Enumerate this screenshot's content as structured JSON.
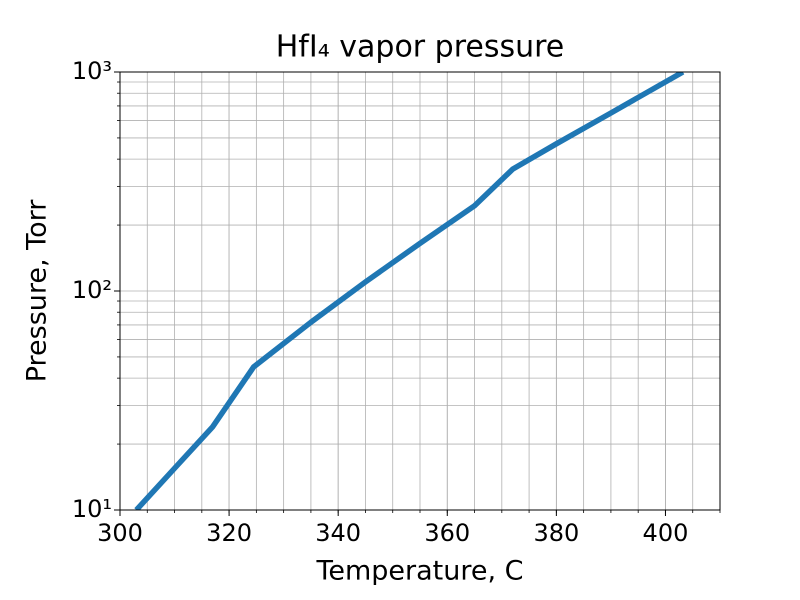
{
  "chart_data": {
    "type": "line",
    "title": "HfI₄ vapor pressure",
    "x_label": "Temperature, C",
    "y_label": "Pressure, Torr",
    "x": [
      303,
      310,
      317,
      324.5,
      335,
      345,
      355,
      365,
      372,
      380,
      390,
      403.2
    ],
    "values": [
      10,
      15.5,
      24,
      45,
      72,
      110,
      165,
      245,
      360,
      470,
      650,
      1000
    ],
    "color": "#1f77b4",
    "xlim": [
      300,
      410
    ],
    "xticks": [
      300,
      320,
      340,
      360,
      380,
      400
    ],
    "ylim": [
      10,
      1000
    ],
    "yscale": "log",
    "yticks": [
      {
        "value": 10,
        "label": "10¹"
      },
      {
        "value": 100,
        "label": "10²"
      },
      {
        "value": 1000,
        "label": "10³"
      }
    ],
    "grid": true
  }
}
